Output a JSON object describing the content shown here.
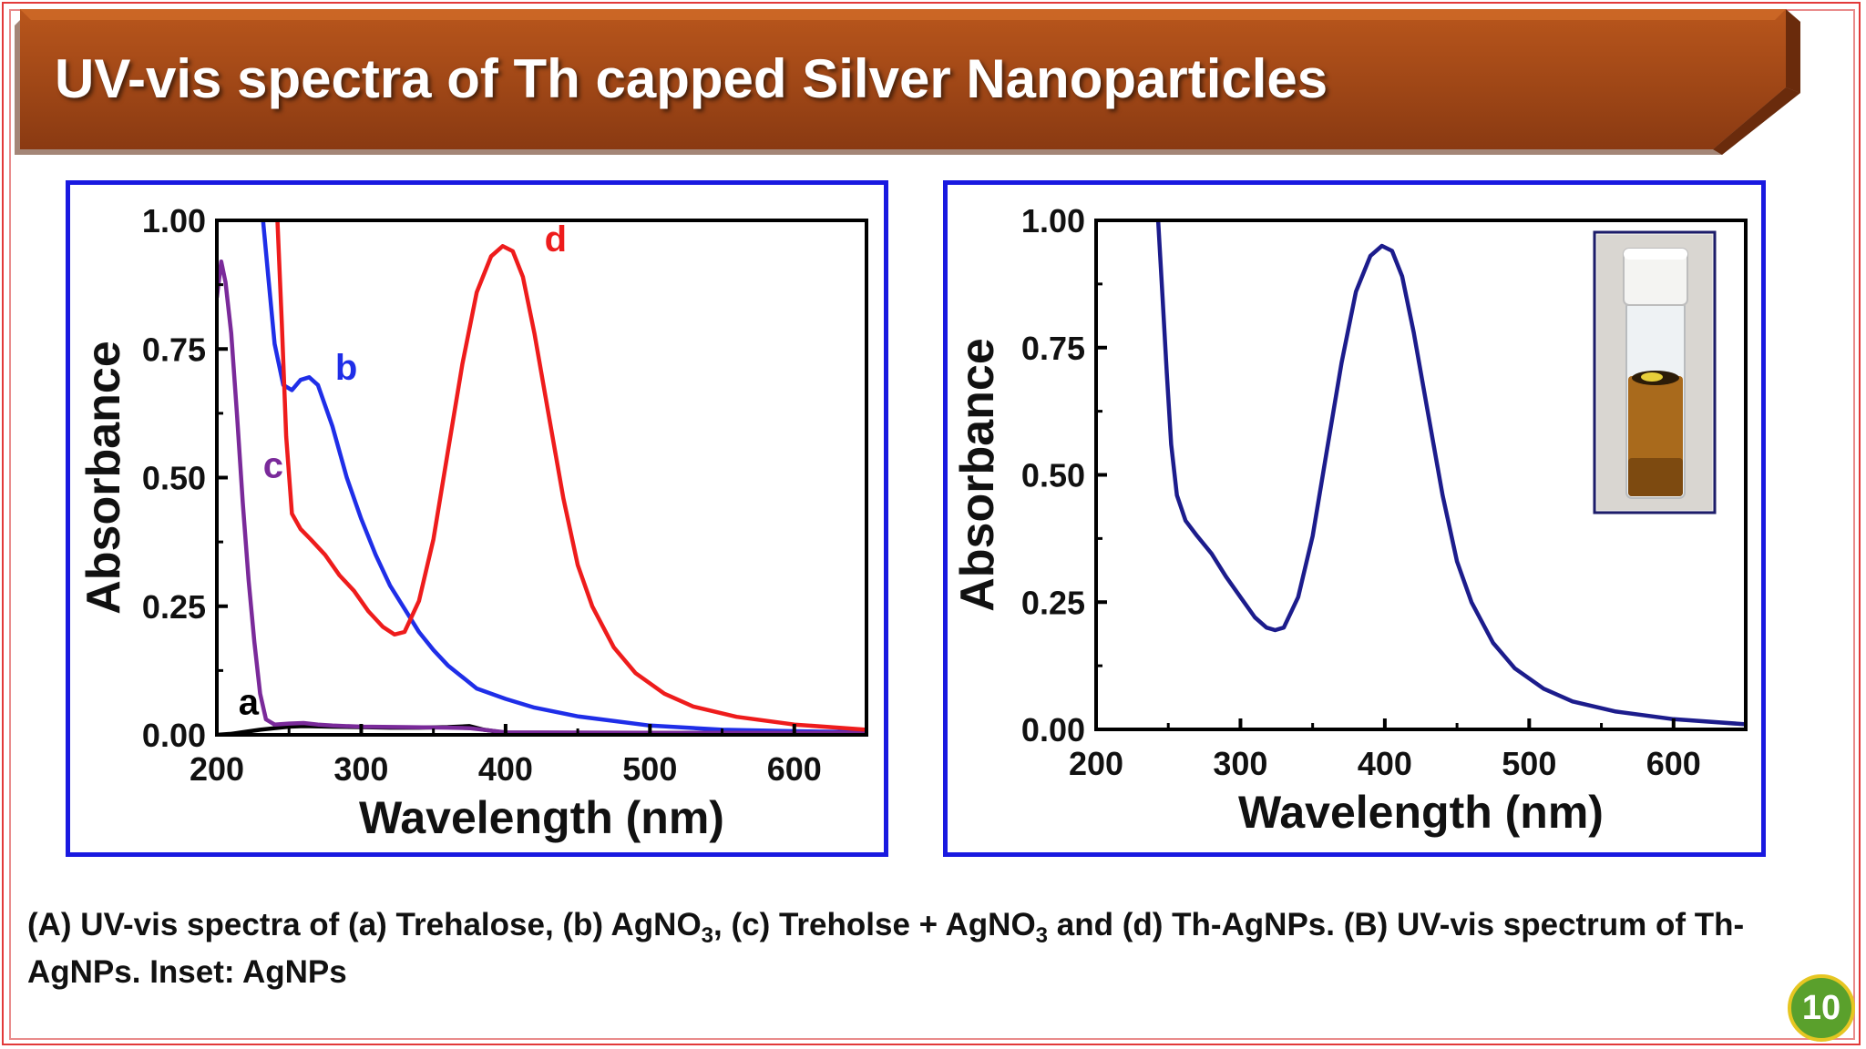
{
  "slide": {
    "title": "UV-vis spectra of Th capped Silver Nanoparticles",
    "page_number": "10",
    "colors": {
      "banner": "#a84a14",
      "banner_dark": "#7a3310",
      "panel_border": "#1919e0",
      "frame": "#e23a3a"
    }
  },
  "caption": {
    "p1": "(A) UV-vis spectra of (a) Trehalose, (b) AgNO",
    "sub1": "3",
    "p2": ", (c) Treholse + AgNO",
    "sub2": "3",
    "p3": " and (d) Th-AgNPs. (B) UV-vis spectrum of Th-AgNPs. Inset: AgNPs"
  },
  "chart_data": [
    {
      "type": "line",
      "xlabel": "Wavelength (nm)",
      "ylabel": "Absorbance",
      "xlim": [
        200,
        650
      ],
      "ylim": [
        0,
        1.0
      ],
      "xticks": [
        200,
        300,
        400,
        500,
        600
      ],
      "xtick_labels": [
        "200",
        "300",
        "400",
        "500",
        "600"
      ],
      "yticks": [
        0,
        0.25,
        0.5,
        0.75,
        1.0
      ],
      "ytick_labels": [
        "0.00",
        "0.25",
        "0.50",
        "0.75",
        "1.00"
      ],
      "series": [
        {
          "name": "a",
          "color": "#000000",
          "label_at": [
            215,
            0.04
          ],
          "points": [
            [
              200,
              0.0
            ],
            [
              210,
              0.002
            ],
            [
              220,
              0.006
            ],
            [
              230,
              0.01
            ],
            [
              240,
              0.013
            ],
            [
              250,
              0.016
            ],
            [
              260,
              0.017
            ],
            [
              280,
              0.016
            ],
            [
              300,
              0.015
            ],
            [
              320,
              0.014
            ],
            [
              340,
              0.014
            ],
            [
              360,
              0.015
            ],
            [
              375,
              0.017
            ],
            [
              385,
              0.01
            ],
            [
              400,
              0.004
            ],
            [
              450,
              0.003
            ],
            [
              500,
              0.002
            ],
            [
              550,
              0.002
            ],
            [
              600,
              0.001
            ],
            [
              650,
              0.001
            ]
          ]
        },
        {
          "name": "b",
          "color": "#1f2ee8",
          "label_at": [
            282,
            0.69
          ],
          "points": [
            [
              232,
              1.0
            ],
            [
              236,
              0.88
            ],
            [
              240,
              0.76
            ],
            [
              246,
              0.68
            ],
            [
              252,
              0.67
            ],
            [
              258,
              0.69
            ],
            [
              264,
              0.695
            ],
            [
              270,
              0.68
            ],
            [
              280,
              0.6
            ],
            [
              290,
              0.5
            ],
            [
              300,
              0.42
            ],
            [
              310,
              0.35
            ],
            [
              320,
              0.29
            ],
            [
              330,
              0.245
            ],
            [
              340,
              0.2
            ],
            [
              350,
              0.165
            ],
            [
              360,
              0.135
            ],
            [
              380,
              0.09
            ],
            [
              400,
              0.07
            ],
            [
              420,
              0.053
            ],
            [
              450,
              0.036
            ],
            [
              500,
              0.018
            ],
            [
              550,
              0.01
            ],
            [
              600,
              0.007
            ],
            [
              650,
              0.005
            ]
          ]
        },
        {
          "name": "c",
          "color": "#7a2a9a",
          "label_at": [
            232,
            0.5
          ],
          "points": [
            [
              200,
              0.85
            ],
            [
              203,
              0.92
            ],
            [
              206,
              0.88
            ],
            [
              210,
              0.78
            ],
            [
              214,
              0.62
            ],
            [
              218,
              0.45
            ],
            [
              222,
              0.3
            ],
            [
              226,
              0.18
            ],
            [
              230,
              0.08
            ],
            [
              234,
              0.03
            ],
            [
              240,
              0.02
            ],
            [
              250,
              0.022
            ],
            [
              260,
              0.023
            ],
            [
              270,
              0.02
            ],
            [
              280,
              0.018
            ],
            [
              300,
              0.016
            ],
            [
              330,
              0.015
            ],
            [
              360,
              0.014
            ],
            [
              375,
              0.013
            ],
            [
              400,
              0.005
            ],
            [
              500,
              0.004
            ],
            [
              600,
              0.004
            ],
            [
              650,
              0.004
            ]
          ]
        },
        {
          "name": "d",
          "color": "#ee1c1c",
          "label_at": [
            427,
            0.94
          ],
          "points": [
            [
              242,
              1.0
            ],
            [
              245,
              0.8
            ],
            [
              248,
              0.58
            ],
            [
              252,
              0.43
            ],
            [
              258,
              0.4
            ],
            [
              265,
              0.38
            ],
            [
              275,
              0.35
            ],
            [
              285,
              0.31
            ],
            [
              295,
              0.28
            ],
            [
              305,
              0.24
            ],
            [
              315,
              0.21
            ],
            [
              323,
              0.195
            ],
            [
              330,
              0.2
            ],
            [
              340,
              0.26
            ],
            [
              350,
              0.38
            ],
            [
              360,
              0.55
            ],
            [
              370,
              0.72
            ],
            [
              380,
              0.86
            ],
            [
              390,
              0.93
            ],
            [
              398,
              0.95
            ],
            [
              405,
              0.94
            ],
            [
              412,
              0.89
            ],
            [
              420,
              0.78
            ],
            [
              430,
              0.62
            ],
            [
              440,
              0.46
            ],
            [
              450,
              0.33
            ],
            [
              460,
              0.25
            ],
            [
              475,
              0.17
            ],
            [
              490,
              0.12
            ],
            [
              510,
              0.08
            ],
            [
              530,
              0.055
            ],
            [
              560,
              0.035
            ],
            [
              600,
              0.02
            ],
            [
              650,
              0.01
            ]
          ]
        }
      ]
    },
    {
      "type": "line",
      "xlabel": "Wavelength (nm)",
      "ylabel": "Absorbance",
      "xlim": [
        200,
        650
      ],
      "ylim": [
        0,
        1.0
      ],
      "xticks": [
        200,
        300,
        400,
        500,
        600
      ],
      "xtick_labels": [
        "200",
        "300",
        "400",
        "500",
        "600"
      ],
      "yticks": [
        0,
        0.25,
        0.5,
        0.75,
        1.0
      ],
      "ytick_labels": [
        "0.00",
        "0.25",
        "0.50",
        "0.75",
        "1.00"
      ],
      "inset": "vial-photo",
      "series": [
        {
          "color": "#1c1c8c",
          "points": [
            [
              243,
              1.0
            ],
            [
              246,
              0.85
            ],
            [
              249,
              0.7
            ],
            [
              252,
              0.56
            ],
            [
              256,
              0.46
            ],
            [
              262,
              0.41
            ],
            [
              270,
              0.38
            ],
            [
              280,
              0.345
            ],
            [
              290,
              0.3
            ],
            [
              300,
              0.26
            ],
            [
              310,
              0.22
            ],
            [
              318,
              0.2
            ],
            [
              324,
              0.195
            ],
            [
              330,
              0.2
            ],
            [
              340,
              0.26
            ],
            [
              350,
              0.38
            ],
            [
              360,
              0.55
            ],
            [
              370,
              0.72
            ],
            [
              380,
              0.86
            ],
            [
              390,
              0.93
            ],
            [
              398,
              0.95
            ],
            [
              405,
              0.94
            ],
            [
              412,
              0.89
            ],
            [
              420,
              0.78
            ],
            [
              430,
              0.62
            ],
            [
              440,
              0.46
            ],
            [
              450,
              0.33
            ],
            [
              460,
              0.25
            ],
            [
              475,
              0.17
            ],
            [
              490,
              0.12
            ],
            [
              510,
              0.08
            ],
            [
              530,
              0.055
            ],
            [
              560,
              0.035
            ],
            [
              600,
              0.02
            ],
            [
              650,
              0.01
            ]
          ]
        }
      ]
    }
  ]
}
